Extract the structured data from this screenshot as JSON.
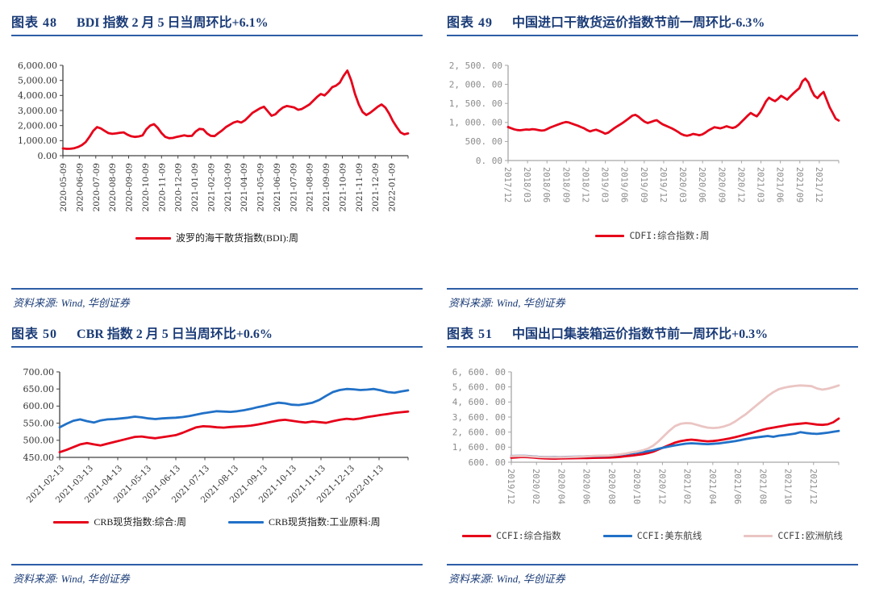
{
  "theme": {
    "navy": "#1b3c78",
    "rule": "#2e5ea6",
    "red": "#e60019",
    "blue": "#2171c7",
    "pink": "#eac5c3"
  },
  "chart_data": [
    {
      "type": "line",
      "fig_label": "图表 48",
      "title": "BDI 指数 2 月 5 日当周环比+6.1%",
      "source": "资料来源: Wind, 华创证券",
      "ylim": [
        0,
        6000
      ],
      "yticks": [
        "6,000.00",
        "5,000.00",
        "4,000.00",
        "3,000.00",
        "2,000.00",
        "1,000.00",
        "0.00"
      ],
      "xticklabels": [
        "2020-05-09",
        "2020-06-09",
        "2020-07-09",
        "2020-08-09",
        "2020-09-09",
        "2020-10-09",
        "2020-11-09",
        "2020-12-09",
        "2021-01-09",
        "2021-02-09",
        "2021-03-09",
        "2021-04-09",
        "2021-05-09",
        "2021-06-09",
        "2021-07-09",
        "2021-08-09",
        "2021-09-09",
        "2021-10-09",
        "2021-11-09",
        "2021-12-09",
        "2022-01-09"
      ],
      "xlabel_rotation": "up",
      "tick_font": "serif",
      "axis_color": "#404040",
      "tick_text_color": "#333333",
      "legend_position": "bottom",
      "grid": false,
      "series": [
        {
          "name": "波罗的海干散货指数(BDI):周",
          "color": "#e60019",
          "values": [
            480,
            455,
            460,
            500,
            580,
            700,
            900,
            1250,
            1650,
            1894,
            1810,
            1650,
            1500,
            1450,
            1480,
            1520,
            1550,
            1400,
            1290,
            1250,
            1280,
            1350,
            1750,
            2000,
            2097,
            1850,
            1500,
            1250,
            1160,
            1180,
            1250,
            1300,
            1350,
            1300,
            1320,
            1600,
            1780,
            1750,
            1480,
            1320,
            1300,
            1500,
            1680,
            1900,
            2050,
            2200,
            2280,
            2200,
            2350,
            2600,
            2850,
            3000,
            3150,
            3250,
            2950,
            2650,
            2750,
            3000,
            3200,
            3300,
            3250,
            3200,
            3050,
            3100,
            3250,
            3400,
            3650,
            3900,
            4100,
            4000,
            4250,
            4550,
            4650,
            4850,
            5300,
            5650,
            5000,
            4100,
            3400,
            2900,
            2700,
            2850,
            3050,
            3250,
            3400,
            3200,
            2800,
            2300,
            1900,
            1550,
            1420,
            1480
          ]
        }
      ]
    },
    {
      "type": "line",
      "fig_label": "图表 49",
      "title": "中国进口干散货运价指数节前一周环比-6.3%",
      "source": "资料来源: Wind, 华创证券",
      "ylim": [
        0,
        2500
      ],
      "yticks": [
        "2, 500. 00",
        "2, 000. 00",
        "1, 500. 00",
        "1, 000. 00",
        "500. 00",
        "0. 00"
      ],
      "xticklabels": [
        "2017/12",
        "2018/03",
        "2018/06",
        "2018/09",
        "2018/12",
        "2019/03",
        "2019/06",
        "2019/09",
        "2019/12",
        "2020/03",
        "2020/06",
        "2020/09",
        "2020/12",
        "2021/03",
        "2021/06",
        "2021/09",
        "2021/12"
      ],
      "xlabel_rotation": "down",
      "tick_font": "mono",
      "axis_color": "#a6a6a6",
      "tick_text_color": "#8c8c8c",
      "legend_position": "bottom",
      "grid": false,
      "series": [
        {
          "name": "CDFI:综合指数:周",
          "color": "#e60019",
          "values": [
            880,
            850,
            820,
            800,
            795,
            805,
            815,
            810,
            825,
            815,
            800,
            785,
            795,
            830,
            870,
            900,
            930,
            960,
            990,
            1010,
            1000,
            970,
            940,
            915,
            880,
            850,
            800,
            765,
            790,
            810,
            780,
            745,
            705,
            730,
            790,
            850,
            900,
            950,
            1000,
            1060,
            1120,
            1180,
            1200,
            1150,
            1080,
            1020,
            985,
            1010,
            1040,
            1060,
            1000,
            950,
            915,
            880,
            845,
            800,
            755,
            700,
            665,
            650,
            670,
            700,
            685,
            665,
            685,
            730,
            790,
            830,
            875,
            860,
            845,
            870,
            900,
            875,
            855,
            880,
            940,
            1020,
            1100,
            1180,
            1250,
            1200,
            1160,
            1260,
            1400,
            1550,
            1650,
            1600,
            1560,
            1620,
            1700,
            1650,
            1600,
            1680,
            1760,
            1830,
            1900,
            2080,
            2150,
            2050,
            1850,
            1700,
            1640,
            1730,
            1800,
            1600,
            1400,
            1250,
            1100,
            1050
          ]
        }
      ]
    },
    {
      "type": "line",
      "fig_label": "图表 50",
      "title": "CBR 指数 2 月 5 日当周环比+0.6%",
      "source": "资料来源: Wind, 华创证券",
      "ylim": [
        450,
        700
      ],
      "yticks": [
        "700.00",
        "650.00",
        "600.00",
        "550.00",
        "500.00",
        "450.00"
      ],
      "xticklabels": [
        "2021-02-13",
        "2021-03-13",
        "2021-04-13",
        "2021-05-13",
        "2021-06-13",
        "2021-07-13",
        "2021-08-13",
        "2021-09-13",
        "2021-10-13",
        "2021-11-13",
        "2021-12-13",
        "2022-01-13"
      ],
      "xlabel_rotation": "diag",
      "tick_font": "serif",
      "axis_color": "#404040",
      "tick_text_color": "#333333",
      "legend_position": "bottom",
      "grid": false,
      "series": [
        {
          "name": "CRB现货指数:综合:周",
          "color": "#e60019",
          "values": [
            465,
            472,
            480,
            488,
            492,
            488,
            485,
            490,
            495,
            500,
            505,
            510,
            511,
            508,
            506,
            509,
            512,
            515,
            522,
            530,
            538,
            541,
            540,
            538,
            537,
            539,
            540,
            541,
            543,
            546,
            550,
            554,
            558,
            560,
            557,
            554,
            552,
            555,
            553,
            551,
            556,
            560,
            563,
            561,
            564,
            568,
            571,
            574,
            577,
            580,
            582,
            584
          ]
        },
        {
          "name": "CRB现货指数:工业原料:周",
          "color": "#2171c7",
          "values": [
            538,
            548,
            557,
            561,
            556,
            552,
            558,
            561,
            562,
            564,
            566,
            569,
            567,
            564,
            562,
            564,
            565,
            566,
            568,
            571,
            575,
            579,
            582,
            585,
            584,
            583,
            585,
            588,
            592,
            597,
            601,
            606,
            610,
            608,
            604,
            603,
            606,
            610,
            618,
            630,
            641,
            647,
            650,
            649,
            647,
            648,
            650,
            646,
            641,
            639,
            643,
            646
          ]
        }
      ]
    },
    {
      "type": "line",
      "fig_label": "图表 51",
      "title": "中国出口集装箱运价指数节前一周环比+0.3%",
      "source": "资料来源: Wind, 华创证券",
      "ylim": [
        600,
        6600
      ],
      "yticks": [
        "6, 600. 00",
        "5, 600. 00",
        "4, 600. 00",
        "3, 600. 00",
        "2, 600. 00",
        "1, 600. 00",
        "600. 00"
      ],
      "xticklabels": [
        "2019/12",
        "2020/02",
        "2020/04",
        "2020/06",
        "2020/08",
        "2020/10",
        "2020/12",
        "2021/02",
        "2021/04",
        "2021/06",
        "2021/08",
        "2021/10",
        "2021/12"
      ],
      "xlabel_rotation": "down",
      "tick_font": "mono",
      "axis_color": "#a6a6a6",
      "tick_text_color": "#8c8c8c",
      "legend_position": "bottom",
      "grid": false,
      "series": [
        {
          "name": "CCFI:综合指数",
          "color": "#e60019",
          "values": [
            900,
            920,
            950,
            940,
            910,
            880,
            855,
            840,
            835,
            845,
            855,
            860,
            870,
            875,
            880,
            890,
            895,
            900,
            910,
            930,
            960,
            1000,
            1040,
            1080,
            1130,
            1200,
            1300,
            1450,
            1600,
            1750,
            1900,
            2000,
            2060,
            2100,
            2060,
            2020,
            1990,
            2010,
            2050,
            2110,
            2180,
            2260,
            2350,
            2450,
            2550,
            2650,
            2750,
            2840,
            2900,
            2960,
            3020,
            3090,
            3130,
            3160,
            3200,
            3150,
            3100,
            3080,
            3120,
            3250,
            3500
          ]
        },
        {
          "name": "CCFI:美东航线",
          "color": "#2171c7",
          "values": [
            1010,
            1020,
            1030,
            1010,
            985,
            960,
            950,
            940,
            935,
            945,
            955,
            960,
            970,
            980,
            990,
            1005,
            1015,
            1025,
            1040,
            1070,
            1100,
            1140,
            1190,
            1230,
            1280,
            1330,
            1400,
            1500,
            1580,
            1650,
            1720,
            1780,
            1830,
            1860,
            1840,
            1815,
            1800,
            1820,
            1850,
            1900,
            1950,
            2000,
            2070,
            2140,
            2200,
            2250,
            2300,
            2340,
            2290,
            2360,
            2400,
            2450,
            2500,
            2600,
            2540,
            2500,
            2480,
            2520,
            2560,
            2620,
            2680
          ]
        },
        {
          "name": "CCFI:欧洲航线",
          "color": "#eac5c3",
          "values": [
            1000,
            1010,
            1020,
            1000,
            975,
            950,
            935,
            925,
            920,
            930,
            940,
            950,
            960,
            975,
            995,
            1020,
            1030,
            1040,
            1050,
            1080,
            1120,
            1180,
            1250,
            1300,
            1380,
            1500,
            1700,
            2000,
            2350,
            2700,
            3000,
            3150,
            3200,
            3180,
            3080,
            2980,
            2900,
            2870,
            2900,
            2980,
            3100,
            3300,
            3550,
            3800,
            4100,
            4400,
            4700,
            5000,
            5250,
            5450,
            5550,
            5620,
            5670,
            5700,
            5680,
            5650,
            5500,
            5420,
            5480,
            5580,
            5700
          ]
        }
      ]
    }
  ]
}
